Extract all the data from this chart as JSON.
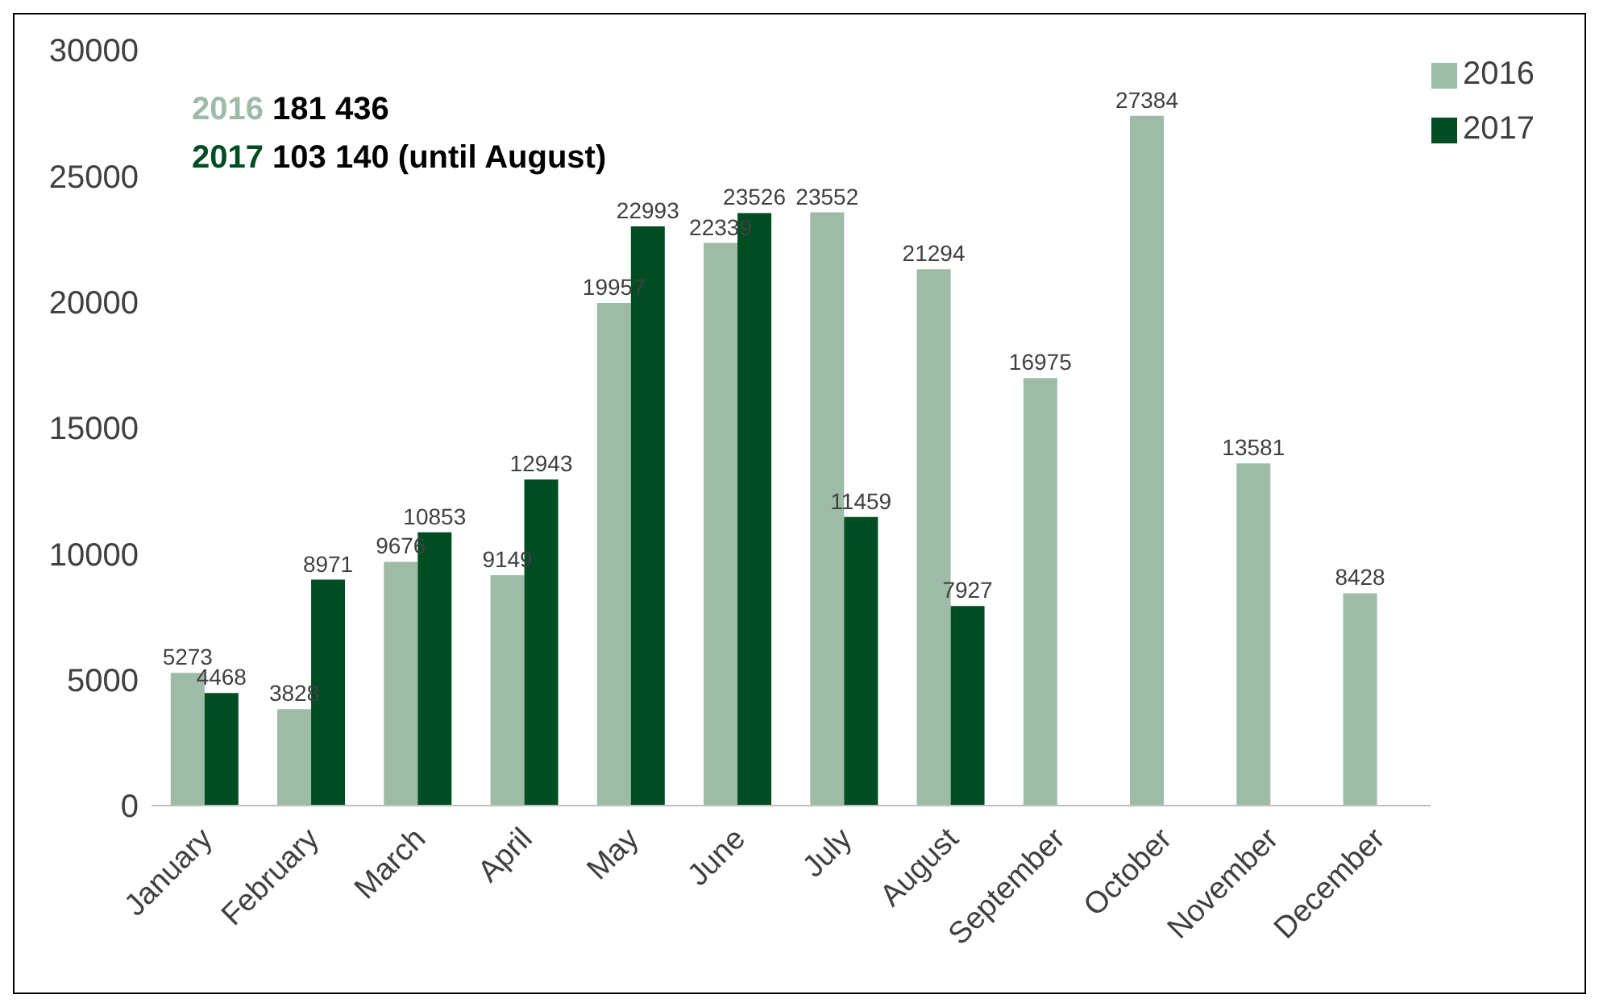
{
  "chart_data": {
    "type": "bar",
    "categories": [
      "January",
      "February",
      "March",
      "April",
      "May",
      "June",
      "July",
      "August",
      "September",
      "October",
      "November",
      "December"
    ],
    "series": [
      {
        "name": "2016",
        "color": "#9dbba6",
        "values": [
          5273,
          3828,
          9676,
          9149,
          19957,
          22339,
          23552,
          21294,
          16975,
          27384,
          13581,
          8428
        ]
      },
      {
        "name": "2017",
        "color": "#004d23",
        "values": [
          4468,
          8971,
          10853,
          12943,
          22993,
          23526,
          11459,
          7927,
          null,
          null,
          null,
          null
        ]
      }
    ],
    "ylim": [
      0,
      30000
    ],
    "yticks": [
      0,
      5000,
      10000,
      15000,
      20000,
      25000,
      30000
    ],
    "legend": "top right",
    "data_labels": true,
    "annotations": [
      "2016 181 436",
      "2017 103 140 (until August)"
    ]
  }
}
